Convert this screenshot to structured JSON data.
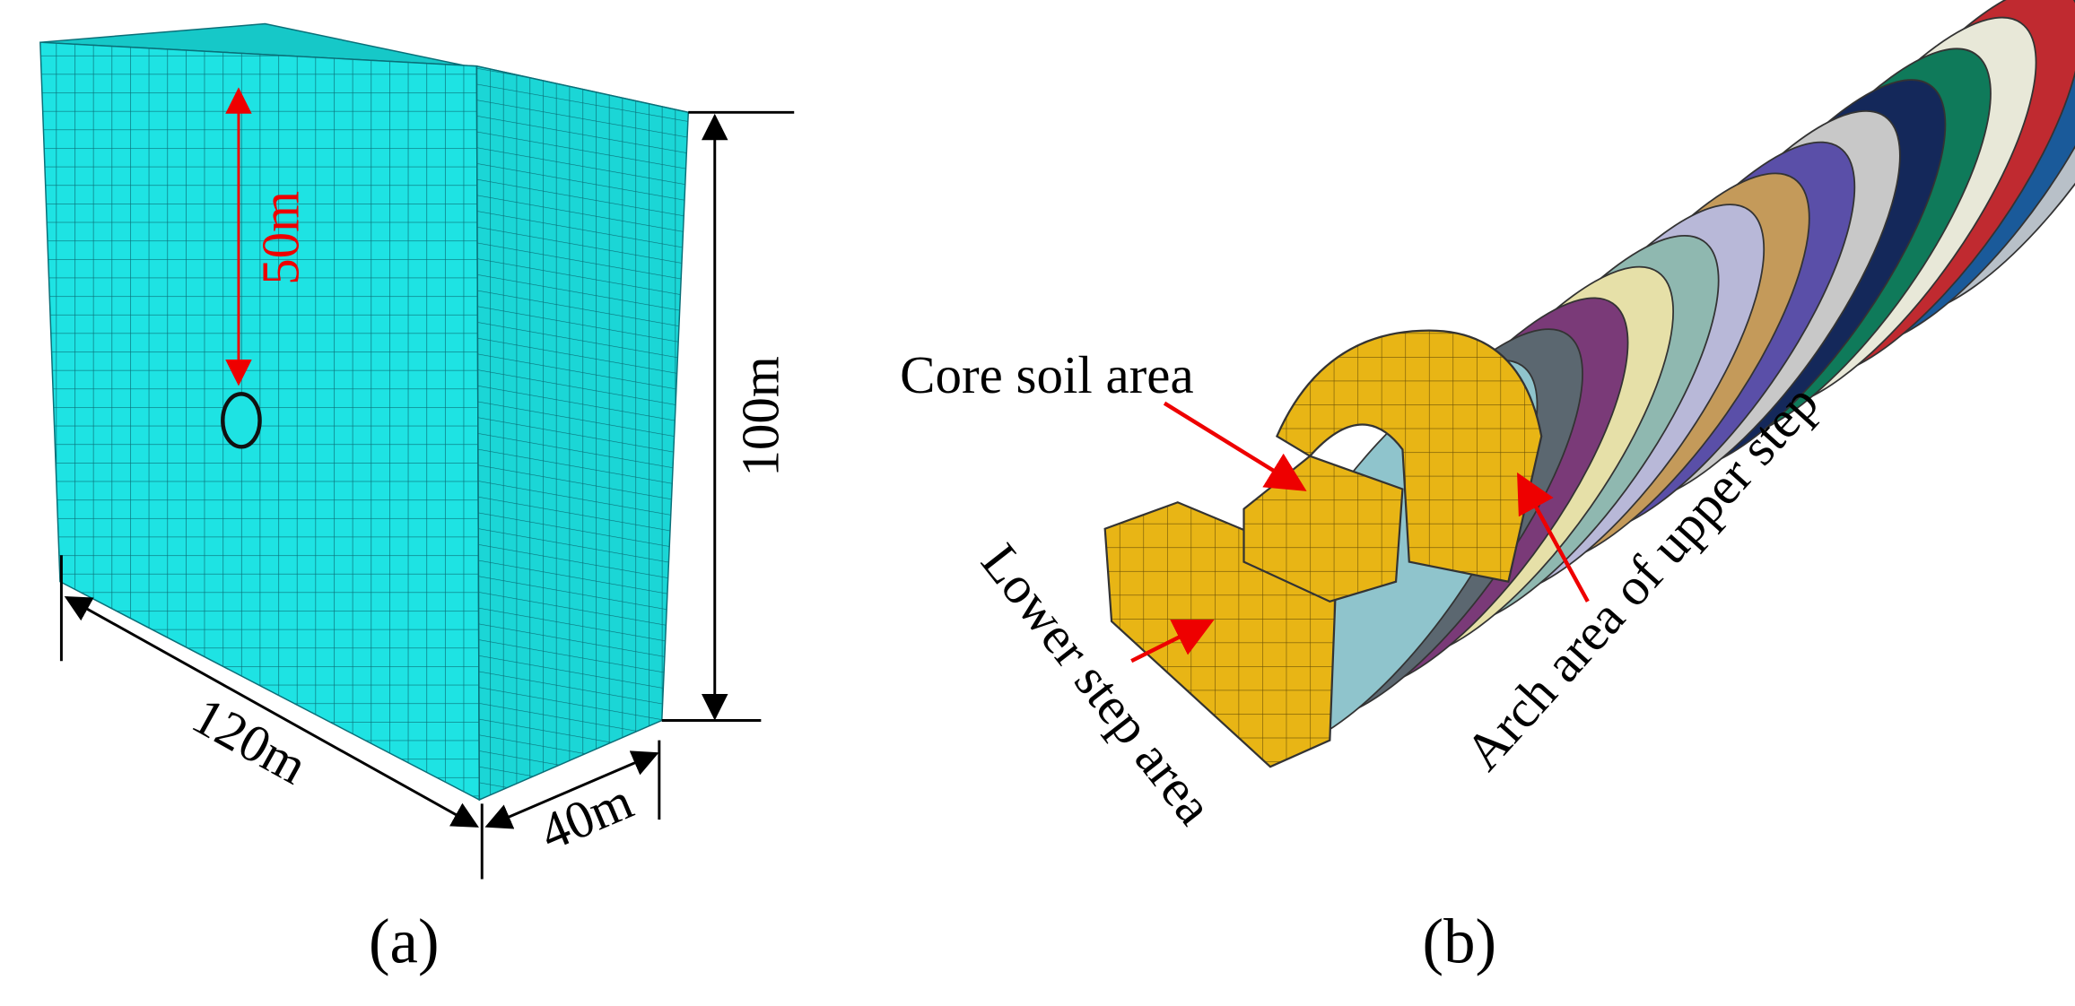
{
  "panel_a": {
    "label": "(a)",
    "dimensions": {
      "depth": "50m",
      "height": "100m",
      "length": "120m",
      "width": "40m"
    }
  },
  "panel_b": {
    "label": "(b)",
    "annotations": [
      "Core soil area",
      "Lower step area",
      "Arch area of upper step"
    ]
  }
}
